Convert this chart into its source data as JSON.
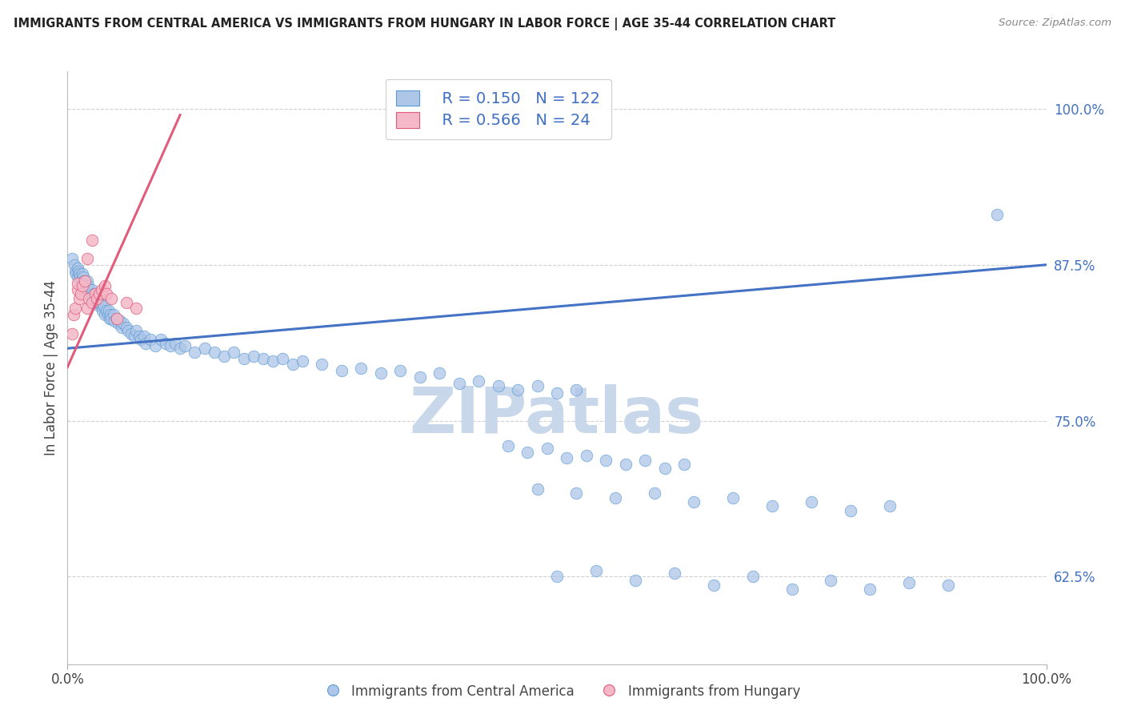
{
  "title": "IMMIGRANTS FROM CENTRAL AMERICA VS IMMIGRANTS FROM HUNGARY IN LABOR FORCE | AGE 35-44 CORRELATION CHART",
  "source": "Source: ZipAtlas.com",
  "ylabel": "In Labor Force | Age 35-44",
  "watermark": "ZIPatlas",
  "xlim": [
    0.0,
    1.0
  ],
  "ylim": [
    0.555,
    1.03
  ],
  "yticks": [
    0.625,
    0.75,
    0.875,
    1.0
  ],
  "ytick_labels": [
    "62.5%",
    "75.0%",
    "87.5%",
    "100.0%"
  ],
  "xtick_positions": [
    0.0,
    1.0
  ],
  "xtick_labels": [
    "0.0%",
    "100.0%"
  ],
  "legend_entries": [
    {
      "label": "Immigrants from Central America",
      "color": "#aec6e8",
      "edge": "#5b9bd5",
      "R": "0.150",
      "N": "122"
    },
    {
      "label": "Immigrants from Hungary",
      "color": "#f4b8c8",
      "edge": "#e05c7a",
      "R": "0.566",
      "N": "24"
    }
  ],
  "blue_line_x": [
    0.0,
    1.0
  ],
  "blue_line_y": [
    0.808,
    0.875
  ],
  "pink_line_x": [
    0.0,
    0.115
  ],
  "pink_line_y": [
    0.793,
    0.995
  ],
  "scatter_blue_x": [
    0.005,
    0.007,
    0.008,
    0.009,
    0.01,
    0.01,
    0.011,
    0.012,
    0.013,
    0.014,
    0.015,
    0.015,
    0.016,
    0.017,
    0.018,
    0.019,
    0.02,
    0.02,
    0.021,
    0.022,
    0.023,
    0.024,
    0.025,
    0.026,
    0.027,
    0.028,
    0.03,
    0.031,
    0.032,
    0.033,
    0.035,
    0.036,
    0.037,
    0.038,
    0.04,
    0.041,
    0.042,
    0.043,
    0.044,
    0.045,
    0.047,
    0.048,
    0.05,
    0.052,
    0.054,
    0.055,
    0.057,
    0.06,
    0.062,
    0.065,
    0.068,
    0.07,
    0.073,
    0.075,
    0.078,
    0.08,
    0.085,
    0.09,
    0.095,
    0.1,
    0.105,
    0.11,
    0.115,
    0.12,
    0.13,
    0.14,
    0.15,
    0.16,
    0.17,
    0.18,
    0.19,
    0.2,
    0.21,
    0.22,
    0.23,
    0.24,
    0.26,
    0.28,
    0.3,
    0.32,
    0.34,
    0.36,
    0.38,
    0.4,
    0.42,
    0.44,
    0.46,
    0.48,
    0.5,
    0.52,
    0.45,
    0.47,
    0.49,
    0.51,
    0.53,
    0.55,
    0.57,
    0.59,
    0.61,
    0.63,
    0.48,
    0.52,
    0.56,
    0.6,
    0.64,
    0.68,
    0.72,
    0.76,
    0.8,
    0.84,
    0.5,
    0.54,
    0.58,
    0.62,
    0.66,
    0.7,
    0.74,
    0.78,
    0.82,
    0.86,
    0.9,
    0.95
  ],
  "scatter_blue_y": [
    0.88,
    0.875,
    0.87,
    0.868,
    0.872,
    0.865,
    0.87,
    0.868,
    0.865,
    0.862,
    0.868,
    0.86,
    0.865,
    0.862,
    0.858,
    0.855,
    0.862,
    0.855,
    0.858,
    0.852,
    0.855,
    0.85,
    0.855,
    0.848,
    0.852,
    0.848,
    0.845,
    0.848,
    0.842,
    0.845,
    0.842,
    0.838,
    0.842,
    0.835,
    0.838,
    0.835,
    0.838,
    0.832,
    0.835,
    0.832,
    0.835,
    0.83,
    0.832,
    0.828,
    0.83,
    0.825,
    0.828,
    0.825,
    0.822,
    0.82,
    0.818,
    0.822,
    0.818,
    0.815,
    0.818,
    0.812,
    0.815,
    0.81,
    0.815,
    0.812,
    0.81,
    0.812,
    0.808,
    0.81,
    0.805,
    0.808,
    0.805,
    0.802,
    0.805,
    0.8,
    0.802,
    0.8,
    0.798,
    0.8,
    0.795,
    0.798,
    0.795,
    0.79,
    0.792,
    0.788,
    0.79,
    0.785,
    0.788,
    0.78,
    0.782,
    0.778,
    0.775,
    0.778,
    0.772,
    0.775,
    0.73,
    0.725,
    0.728,
    0.72,
    0.722,
    0.718,
    0.715,
    0.718,
    0.712,
    0.715,
    0.695,
    0.692,
    0.688,
    0.692,
    0.685,
    0.688,
    0.682,
    0.685,
    0.678,
    0.682,
    0.625,
    0.63,
    0.622,
    0.628,
    0.618,
    0.625,
    0.615,
    0.622,
    0.615,
    0.62,
    0.618,
    0.915
  ],
  "scatter_pink_x": [
    0.005,
    0.006,
    0.008,
    0.01,
    0.01,
    0.012,
    0.014,
    0.015,
    0.018,
    0.02,
    0.022,
    0.025,
    0.028,
    0.03,
    0.032,
    0.035,
    0.038,
    0.04,
    0.045,
    0.05,
    0.02,
    0.025,
    0.06,
    0.07
  ],
  "scatter_pink_y": [
    0.82,
    0.835,
    0.84,
    0.855,
    0.86,
    0.848,
    0.852,
    0.858,
    0.862,
    0.84,
    0.848,
    0.845,
    0.852,
    0.848,
    0.852,
    0.855,
    0.858,
    0.852,
    0.848,
    0.832,
    0.88,
    0.895,
    0.845,
    0.84
  ],
  "scatter_blue_color": "#aec6e8",
  "scatter_blue_edge": "#5b9bd5",
  "scatter_pink_color": "#f4b8c8",
  "scatter_pink_edge": "#e05c7a",
  "blue_line_color": "#4472c4",
  "pink_line_color": "#e05c7a",
  "grid_color": "#d0d0d0",
  "bg_color": "#ffffff",
  "title_color": "#222222",
  "watermark_color": "#c8d8ea",
  "right_label_color": "#4472c4",
  "source_color": "#888888"
}
